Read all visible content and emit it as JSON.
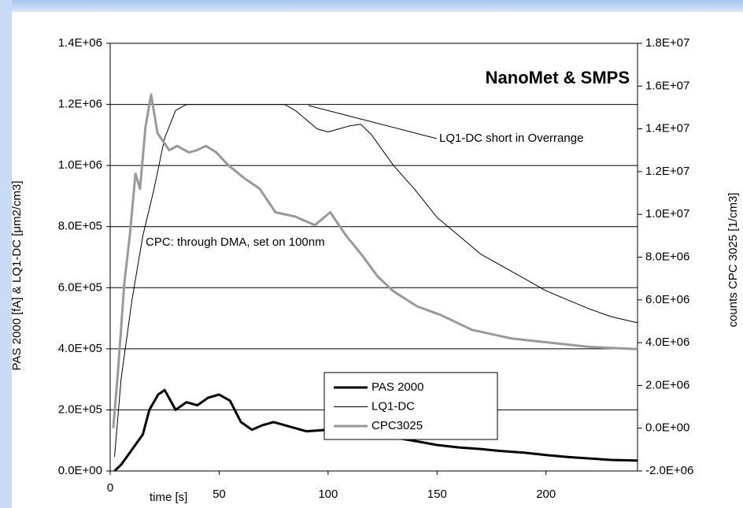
{
  "chart_data": {
    "type": "line",
    "y_label": "PAS 2000 [fA] & LQ1-DC [μm2/cm3]",
    "y2_label": "counts CPC 3025 [1/cm3]",
    "x_label": "time [s]",
    "annotations": [
      "NanoMet & SMPS",
      "LQ1-DC short in Overrange",
      "CPC: through DMA, set on 100nm"
    ],
    "xlim": [
      0,
      242
    ],
    "xticks": [
      0,
      50,
      100,
      150,
      200
    ],
    "ylim": [
      0,
      1400000
    ],
    "yticks": [
      {
        "value": 0,
        "label": "0.0E+00"
      },
      {
        "value": 200000,
        "label": "2.0E+05"
      },
      {
        "value": 400000,
        "label": "4.0E+05"
      },
      {
        "value": 600000,
        "label": "6.0E+05"
      },
      {
        "value": 800000,
        "label": "8.0E+05"
      },
      {
        "value": 1000000,
        "label": "1.0E+06"
      },
      {
        "value": 1200000,
        "label": "1.2E+06"
      },
      {
        "value": 1400000,
        "label": "1.4E+06"
      }
    ],
    "y2lim": [
      -2000000,
      18000000
    ],
    "y2ticks": [
      {
        "value": -2000000,
        "label": "-2.0E+06"
      },
      {
        "value": 0,
        "label": "0.0E+00"
      },
      {
        "value": 2000000,
        "label": "2.0E+06"
      },
      {
        "value": 4000000,
        "label": "4.0E+06"
      },
      {
        "value": 6000000,
        "label": "6.0E+06"
      },
      {
        "value": 8000000,
        "label": "8.0E+06"
      },
      {
        "value": 10000000,
        "label": "1.0E+07"
      },
      {
        "value": 12000000,
        "label": "1.2E+07"
      },
      {
        "value": 14000000,
        "label": "1.4E+07"
      },
      {
        "value": 16000000,
        "label": "1.6E+07"
      },
      {
        "value": 18000000,
        "label": "1.8E+07"
      }
    ],
    "grid": true,
    "series": [
      {
        "name": "PAS 2000",
        "color": "#000000",
        "width": 3,
        "x": [
          2,
          5,
          10,
          15,
          18,
          22,
          25,
          30,
          35,
          40,
          45,
          50,
          55,
          60,
          65,
          70,
          75,
          80,
          90,
          100,
          110,
          120,
          130,
          140,
          150,
          160,
          170,
          180,
          190,
          200,
          210,
          220,
          230,
          242
        ],
        "values": [
          0,
          20000,
          70000,
          120000,
          200000,
          250000,
          265000,
          200000,
          225000,
          215000,
          240000,
          250000,
          230000,
          160000,
          135000,
          150000,
          160000,
          150000,
          130000,
          135000,
          135000,
          125000,
          110000,
          98000,
          85000,
          77000,
          72000,
          65000,
          60000,
          52000,
          46000,
          41000,
          36000,
          34000
        ]
      },
      {
        "name": "LQ1-DC",
        "color": "#000000",
        "width": 1,
        "x": [
          2,
          5,
          10,
          15,
          20,
          25,
          30,
          35,
          80,
          85,
          90,
          95,
          100,
          105,
          110,
          115,
          120,
          125,
          130,
          140,
          150,
          160,
          170,
          180,
          190,
          200,
          210,
          220,
          230,
          242
        ],
        "values": [
          46000,
          300000,
          560000,
          770000,
          920000,
          1090000,
          1180000,
          1200000,
          1200000,
          1180000,
          1150000,
          1120000,
          1110000,
          1120000,
          1130000,
          1135000,
          1100000,
          1050000,
          1000000,
          920000,
          830000,
          770000,
          710000,
          670000,
          630000,
          590000,
          560000,
          530000,
          505000,
          485000
        ]
      },
      {
        "name": "CPC3025",
        "color": "#999999",
        "width": 3,
        "axis": "y2",
        "x": [
          1.4,
          3.6,
          6.5,
          9,
          11.6,
          13.7,
          16.2,
          18.8,
          21.7,
          27.1,
          30.7,
          36.1,
          39.7,
          44,
          48.7,
          54.2,
          61.4,
          68.6,
          75.8,
          84.8,
          93.9,
          101,
          108.3,
          115.5,
          122.7,
          130,
          140.8,
          151.6,
          166,
          184,
          202,
          220,
          242
        ],
        "values": [
          0,
          2700000,
          6800000,
          9000000,
          11900000,
          11200000,
          14100000,
          15600000,
          13800000,
          13000000,
          13200000,
          12900000,
          13000000,
          13200000,
          12900000,
          12300000,
          11700000,
          11200000,
          10100000,
          9900000,
          9500000,
          10100000,
          9000000,
          8100000,
          7100000,
          6400000,
          5700000,
          5300000,
          4600000,
          4200000,
          4000000,
          3800000,
          3700000
        ]
      }
    ]
  }
}
